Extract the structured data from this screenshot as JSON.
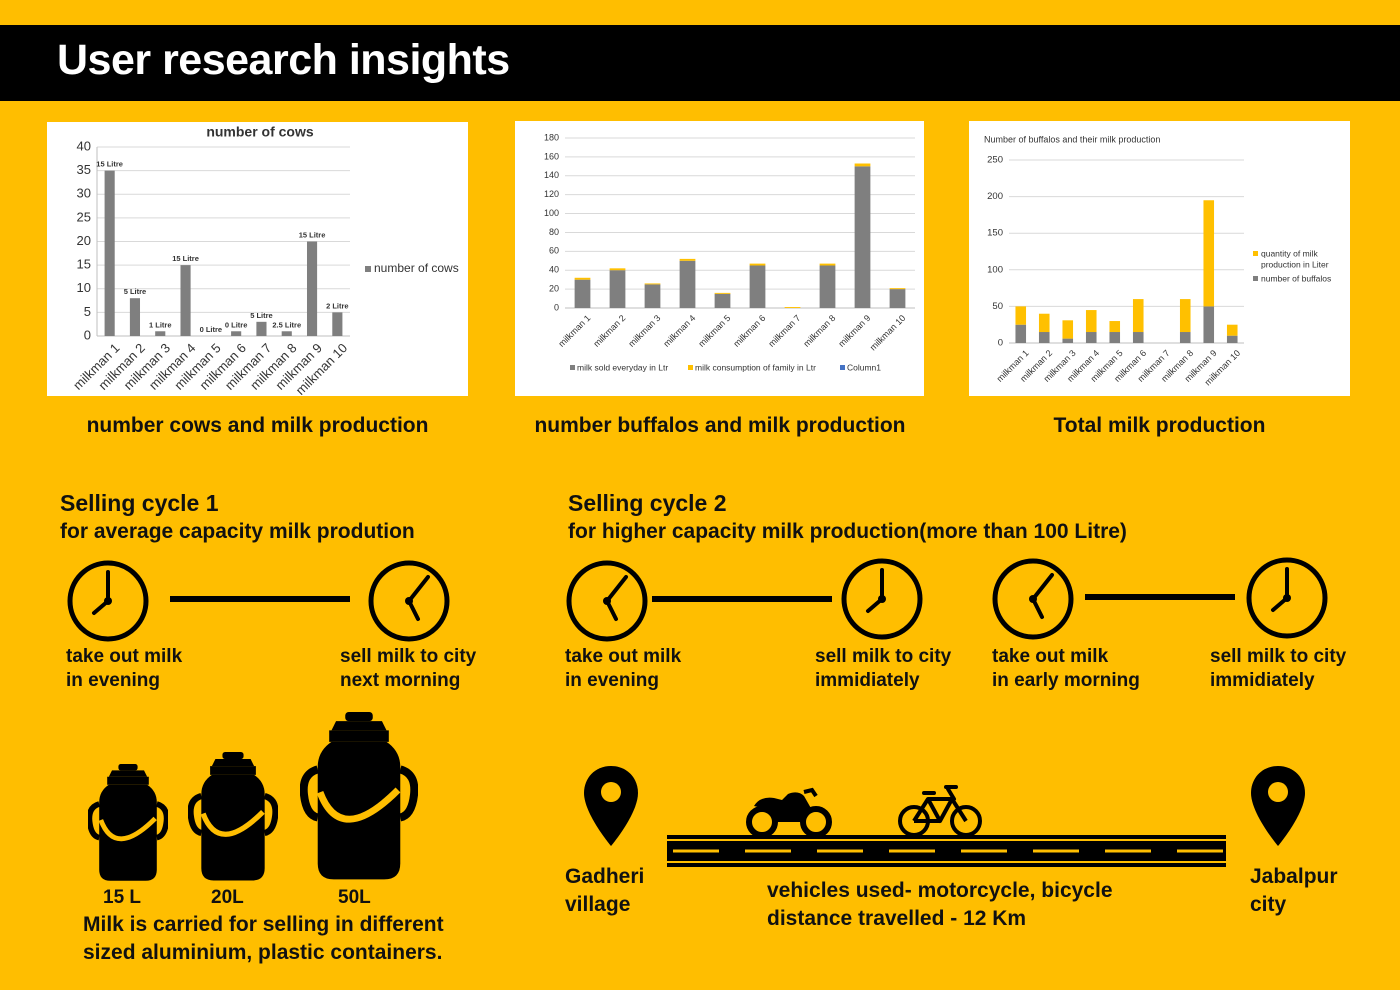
{
  "page": {
    "title": "User research insights"
  },
  "charts": [
    {
      "caption": "number cows and milk production",
      "chart_data": {
        "type": "bar",
        "title": "number of cows",
        "categories": [
          "milkman 1",
          "milkman 2",
          "milkman 3",
          "milkman 4",
          "milkman 5",
          "milkman 6",
          "milkman 7",
          "milkman 8",
          "milkman 9",
          "milkman 10"
        ],
        "series": [
          {
            "name": "number of cows",
            "values": [
              35,
              8,
              1,
              15,
              0,
              1,
              3,
              1,
              20,
              5
            ],
            "color": "#7F7F7F"
          }
        ],
        "data_labels": [
          "15 Litre",
          "5 Litre",
          "1 Litre",
          "15 Litre",
          "0 Litre",
          "0 Litre",
          "5 Litre",
          "2.5 Litre",
          "15 Litre",
          "2 Litre"
        ],
        "yticks": [
          "0",
          "5",
          "10",
          "15",
          "20",
          "25",
          "30",
          "35",
          "40"
        ],
        "ylim": [
          0,
          40
        ],
        "grid": true,
        "legend": "right"
      }
    },
    {
      "caption": "number buffalos and milk production",
      "chart_data": {
        "type": "bar",
        "title": "",
        "stacked": true,
        "categories": [
          "milkman 1",
          "milkman 2",
          "milkman 3",
          "milkman 4",
          "milkman 5",
          "milkman 6",
          "milkman 7",
          "milkman 8",
          "milkman 9",
          "milkman 10"
        ],
        "series": [
          {
            "name": "milk sold everyday in Ltr",
            "values": [
              30,
              40,
              25,
              50,
              15,
              45,
              0,
              45,
              150,
              20
            ],
            "color": "#7F7F7F"
          },
          {
            "name": "milk consumption of family in Ltr",
            "values": [
              2,
              2,
              1,
              2,
              1,
              2,
              1,
              2,
              3,
              1
            ],
            "color": "#FFC000"
          },
          {
            "name": "Column1",
            "values": [
              0,
              0,
              0,
              0,
              0,
              0,
              0,
              0,
              0,
              0
            ],
            "color": "#4472C4"
          }
        ],
        "yticks": [
          "0",
          "20",
          "40",
          "60",
          "80",
          "100",
          "120",
          "140",
          "160",
          "180"
        ],
        "ylim": [
          0,
          180
        ],
        "grid": true,
        "legend": "bottom"
      }
    },
    {
      "caption": "Total milk production",
      "chart_data": {
        "type": "bar",
        "title": "Number of buffalos and their milk production",
        "stacked": true,
        "categories": [
          "milkman 1",
          "milkman 2",
          "milkman 3",
          "milkman 4",
          "milkman 5",
          "milkman 6",
          "milkman 7",
          "milkman 8",
          "milkman 9",
          "milkman 10"
        ],
        "series": [
          {
            "name": "number of buffalos",
            "values": [
              25,
              15,
              6,
              15,
              15,
              15,
              0,
              15,
              50,
              10
            ],
            "color": "#7F7F7F"
          },
          {
            "name": "quantity of milk production in Liter",
            "values": [
              25,
              25,
              25,
              30,
              15,
              45,
              0,
              45,
              145,
              15
            ],
            "color": "#FFC000"
          }
        ],
        "legend_labels": [
          "quantity of milk",
          "production in Liter",
          "number of buffalos"
        ],
        "yticks": [
          "0",
          "50",
          "100",
          "150",
          "200",
          "250"
        ],
        "ylim": [
          0,
          250
        ],
        "grid": true,
        "legend": "right"
      }
    }
  ],
  "cycle1": {
    "title": "Selling cycle 1",
    "subtitle": "for average capacity milk prodution",
    "steps": [
      {
        "line1": "take out milk",
        "line2": "in evening"
      },
      {
        "line1": "sell milk to city",
        "line2": "next morning"
      }
    ]
  },
  "cycle2": {
    "title": "Selling cycle 2",
    "subtitle": "for higher capacity milk production(more than 100 Litre)",
    "steps": [
      {
        "line1": "take out milk",
        "line2": "in evening"
      },
      {
        "line1": "sell milk to city",
        "line2": "immidiately"
      },
      {
        "line1": "take out milk",
        "line2": "in early morning"
      },
      {
        "line1": "sell milk to city",
        "line2": "immidiately"
      }
    ]
  },
  "containers": {
    "labels": [
      "15 L",
      "20L",
      "50L"
    ],
    "note_line1": "Milk is carried for selling in different",
    "note_line2": "sized aluminium, plastic containers."
  },
  "route": {
    "origin_line1": "Gadheri",
    "origin_line2": "village",
    "destination_line1": "Jabalpur",
    "destination_line2": "city",
    "vehicles_text": "vehicles used- motorcycle, bicycle",
    "distance_text": "distance travelled - 12 Km"
  },
  "colors": {
    "background": "#FFBE00",
    "header": "#000000",
    "bar_grey": "#7F7F7F",
    "bar_yellow": "#FFC000"
  },
  "icons": [
    "clock-icon",
    "milk-can-icon",
    "location-pin-icon",
    "motorcycle-icon",
    "bicycle-icon",
    "road-icon"
  ]
}
